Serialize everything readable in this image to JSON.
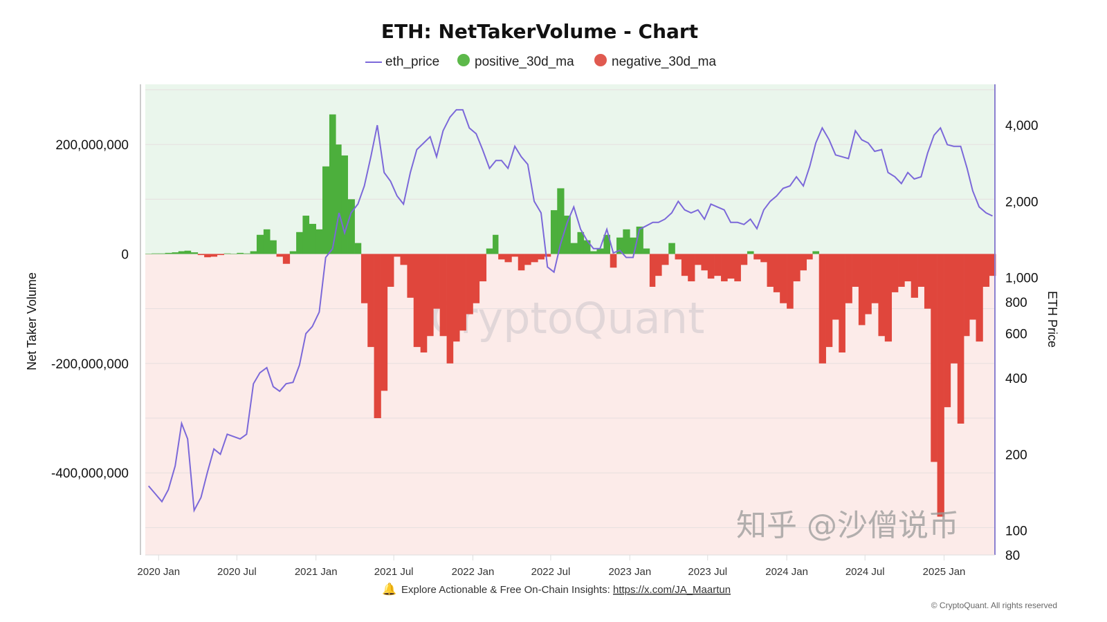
{
  "chart_data": {
    "type": "bar+line",
    "title": "ETH: NetTakerVolume - Chart",
    "ylabel": "Net Taker Volume",
    "y2label": "ETH Price",
    "y_scale": "linear",
    "y2_scale": "log",
    "ylim": [
      -550000000,
      310000000
    ],
    "y2lim": [
      80,
      5800
    ],
    "yticks": [
      "200,000,000",
      "0",
      "-200,000,000",
      "-400,000,000"
    ],
    "yticks_values": [
      200000000,
      0,
      -200000000,
      -400000000
    ],
    "y2ticks": [
      "4,000",
      "2,000",
      "1,000",
      "800",
      "600",
      "400",
      "200",
      "100",
      "80"
    ],
    "y2ticks_values": [
      4000,
      2000,
      1000,
      800,
      600,
      400,
      200,
      100,
      80
    ],
    "xticks": [
      "2020 Jan",
      "2020 Jul",
      "2021 Jan",
      "2021 Jul",
      "2022 Jan",
      "2022 Jul",
      "2023 Jan",
      "2023 Jul",
      "2024 Jan",
      "2024 Jul",
      "2025 Jan"
    ],
    "xticks_dates": [
      "2020-01-01",
      "2020-07-01",
      "2021-01-01",
      "2021-07-01",
      "2022-01-01",
      "2022-07-01",
      "2023-01-01",
      "2023-07-01",
      "2024-01-01",
      "2024-07-01",
      "2025-01-01"
    ],
    "grid": true,
    "legend_position": "top",
    "legend": [
      {
        "name": "eth_price",
        "marker": "line",
        "color": "#7b68d9"
      },
      {
        "name": "positive_30d_ma",
        "marker": "circle",
        "color": "#5cb84a"
      },
      {
        "name": "negative_30d_ma",
        "marker": "circle",
        "color": "#e05a50"
      }
    ],
    "colors": {
      "positive_bg": "#eaf6ec",
      "negative_bg": "#fcebe9",
      "price": "#7b68d9",
      "positive": "#4caf3c",
      "negative": "#e0463c",
      "right_axis": "#8a7fd0"
    },
    "x": [
      "2019-12-01",
      "2019-12-16",
      "2020-01-01",
      "2020-01-16",
      "2020-02-01",
      "2020-02-16",
      "2020-03-01",
      "2020-03-16",
      "2020-04-01",
      "2020-04-16",
      "2020-05-01",
      "2020-05-16",
      "2020-06-01",
      "2020-06-16",
      "2020-07-01",
      "2020-07-16",
      "2020-08-01",
      "2020-08-16",
      "2020-09-01",
      "2020-09-16",
      "2020-10-01",
      "2020-10-16",
      "2020-11-01",
      "2020-11-16",
      "2020-12-01",
      "2020-12-16",
      "2021-01-01",
      "2021-01-16",
      "2021-02-01",
      "2021-02-16",
      "2021-03-01",
      "2021-03-16",
      "2021-04-01",
      "2021-04-16",
      "2021-05-01",
      "2021-05-16",
      "2021-06-01",
      "2021-06-16",
      "2021-07-01",
      "2021-07-16",
      "2021-08-01",
      "2021-08-16",
      "2021-09-01",
      "2021-09-16",
      "2021-10-01",
      "2021-10-16",
      "2021-11-01",
      "2021-11-16",
      "2021-12-01",
      "2021-12-16",
      "2022-01-01",
      "2022-01-16",
      "2022-02-01",
      "2022-02-16",
      "2022-03-01",
      "2022-03-16",
      "2022-04-01",
      "2022-04-16",
      "2022-05-01",
      "2022-05-16",
      "2022-06-01",
      "2022-06-16",
      "2022-07-01",
      "2022-07-16",
      "2022-08-01",
      "2022-08-16",
      "2022-09-01",
      "2022-09-16",
      "2022-10-01",
      "2022-10-16",
      "2022-11-01",
      "2022-11-16",
      "2022-12-01",
      "2022-12-16",
      "2023-01-01",
      "2023-01-16",
      "2023-02-01",
      "2023-02-16",
      "2023-03-01",
      "2023-03-16",
      "2023-04-01",
      "2023-04-16",
      "2023-05-01",
      "2023-05-16",
      "2023-06-01",
      "2023-06-16",
      "2023-07-01",
      "2023-07-16",
      "2023-08-01",
      "2023-08-16",
      "2023-09-01",
      "2023-09-16",
      "2023-10-01",
      "2023-10-16",
      "2023-11-01",
      "2023-11-16",
      "2023-12-01",
      "2023-12-16",
      "2024-01-01",
      "2024-01-16",
      "2024-02-01",
      "2024-02-16",
      "2024-03-01",
      "2024-03-16",
      "2024-04-01",
      "2024-04-16",
      "2024-05-01",
      "2024-05-16",
      "2024-06-01",
      "2024-06-16",
      "2024-07-01",
      "2024-07-16",
      "2024-08-01",
      "2024-08-16",
      "2024-09-01",
      "2024-09-16",
      "2024-10-01",
      "2024-10-16",
      "2024-11-01",
      "2024-11-16",
      "2024-12-01",
      "2024-12-16",
      "2025-01-01",
      "2025-01-16",
      "2025-02-01",
      "2025-02-16",
      "2025-03-01",
      "2025-03-16",
      "2025-04-01",
      "2025-04-16"
    ],
    "series": [
      {
        "name": "net_taker_volume_30d_ma",
        "axis": "left",
        "values": [
          0,
          1000000,
          1000000,
          2000000,
          3000000,
          5000000,
          6000000,
          3000000,
          -2000000,
          -6000000,
          -5000000,
          -2000000,
          1000000,
          0,
          2000000,
          1000000,
          5000000,
          35000000,
          45000000,
          25000000,
          -5000000,
          -18000000,
          5000000,
          40000000,
          70000000,
          55000000,
          45000000,
          160000000,
          255000000,
          200000000,
          180000000,
          100000000,
          20000000,
          -90000000,
          -170000000,
          -300000000,
          -250000000,
          -60000000,
          -5000000,
          -20000000,
          -80000000,
          -170000000,
          -180000000,
          -150000000,
          -100000000,
          -150000000,
          -200000000,
          -160000000,
          -140000000,
          -110000000,
          -90000000,
          -50000000,
          10000000,
          35000000,
          -10000000,
          -15000000,
          -5000000,
          -30000000,
          -20000000,
          -15000000,
          -10000000,
          -5000000,
          80000000,
          120000000,
          70000000,
          20000000,
          40000000,
          25000000,
          5000000,
          10000000,
          35000000,
          -25000000,
          30000000,
          45000000,
          30000000,
          50000000,
          10000000,
          -60000000,
          -40000000,
          -20000000,
          20000000,
          -10000000,
          -40000000,
          -50000000,
          -20000000,
          -30000000,
          -45000000,
          -40000000,
          -50000000,
          -45000000,
          -50000000,
          -20000000,
          5000000,
          -10000000,
          -15000000,
          -60000000,
          -70000000,
          -90000000,
          -100000000,
          -50000000,
          -30000000,
          -10000000,
          5000000,
          -200000000,
          -170000000,
          -120000000,
          -180000000,
          -90000000,
          -60000000,
          -130000000,
          -110000000,
          -90000000,
          -150000000,
          -160000000,
          -70000000,
          -60000000,
          -50000000,
          -80000000,
          -60000000,
          -100000000,
          -380000000,
          -480000000,
          -280000000,
          -200000000,
          -310000000,
          -150000000,
          -120000000,
          -160000000,
          -60000000,
          -40000000
        ]
      },
      {
        "name": "eth_price",
        "axis": "right",
        "values": [
          150,
          140,
          130,
          145,
          180,
          265,
          230,
          120,
          135,
          170,
          210,
          200,
          240,
          235,
          230,
          240,
          380,
          420,
          440,
          370,
          355,
          380,
          385,
          450,
          600,
          640,
          730,
          1200,
          1300,
          1800,
          1500,
          1800,
          1950,
          2300,
          3000,
          4000,
          2600,
          2400,
          2100,
          1950,
          2600,
          3200,
          3400,
          3600,
          3000,
          3800,
          4300,
          4600,
          4600,
          3900,
          3700,
          3200,
          2700,
          2900,
          2900,
          2700,
          3300,
          3000,
          2800,
          2000,
          1800,
          1100,
          1050,
          1350,
          1650,
          1900,
          1550,
          1400,
          1300,
          1300,
          1550,
          1250,
          1280,
          1200,
          1200,
          1550,
          1600,
          1650,
          1650,
          1700,
          1800,
          2000,
          1850,
          1800,
          1850,
          1700,
          1950,
          1900,
          1850,
          1650,
          1650,
          1620,
          1700,
          1560,
          1850,
          2000,
          2100,
          2250,
          2300,
          2500,
          2300,
          2750,
          3400,
          3900,
          3500,
          3050,
          3000,
          2950,
          3800,
          3500,
          3400,
          3150,
          3200,
          2600,
          2500,
          2350,
          2600,
          2450,
          2500,
          3100,
          3650,
          3900,
          3350,
          3300,
          3300,
          2700,
          2200,
          1900,
          1800,
          1750
        ]
      }
    ]
  },
  "watermark": "CryptoQuant",
  "overlay_watermark": "知乎 @沙僧说币",
  "footer": {
    "bell_icon": "bell-icon",
    "text": "Explore Actionable & Free On-Chain Insights: ",
    "link": "https://x.com/JA_Maartun",
    "copyright": "© CryptoQuant. All rights reserved"
  }
}
